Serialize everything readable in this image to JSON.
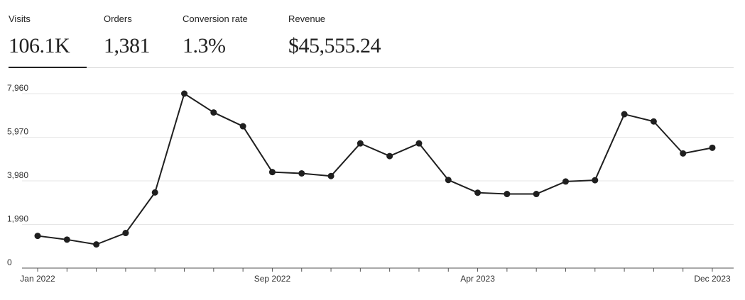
{
  "metrics": [
    {
      "label": "Visits",
      "value": "106.1K"
    },
    {
      "label": "Orders",
      "value": "1,381"
    },
    {
      "label": "Conversion rate",
      "value": "1.3%"
    },
    {
      "label": "Revenue",
      "value": "$45,555.24"
    }
  ],
  "chart_data": {
    "type": "line",
    "title": "",
    "xlabel": "",
    "ylabel": "",
    "ylim": [
      0,
      7960
    ],
    "yticks": [
      "0",
      "1,990",
      "3,980",
      "5,970",
      "7,960"
    ],
    "ytick_values": [
      0,
      1990,
      3980,
      5970,
      7960
    ],
    "x_tick_labels": [
      {
        "label": "Jan 2022",
        "index": 0
      },
      {
        "label": "Sep 2022",
        "index": 8
      },
      {
        "label": "Apr 2023",
        "index": 15
      },
      {
        "label": "Dec 2023",
        "index": 23
      }
    ],
    "x": [
      "2022-01",
      "2022-02",
      "2022-03",
      "2022-04",
      "2022-05",
      "2022-06",
      "2022-07",
      "2022-08",
      "2022-09",
      "2022-10",
      "2022-11",
      "2022-12",
      "2023-01",
      "2023-02",
      "2023-03",
      "2023-04",
      "2023-05",
      "2023-06",
      "2023-07",
      "2023-08",
      "2023-09",
      "2023-10",
      "2023-11",
      "2023-12"
    ],
    "series": [
      {
        "values": [
          1470,
          1300,
          1080,
          1600,
          3450,
          7960,
          7100,
          6470,
          4380,
          4320,
          4200,
          5690,
          5110,
          5690,
          4020,
          3440,
          3380,
          3380,
          3950,
          4010,
          7020,
          6690,
          5230,
          5490
        ]
      }
    ],
    "grid": true,
    "colors": {
      "line": "#1f1f1f",
      "grid": "#e6e6e6",
      "axis": "#555555"
    }
  }
}
